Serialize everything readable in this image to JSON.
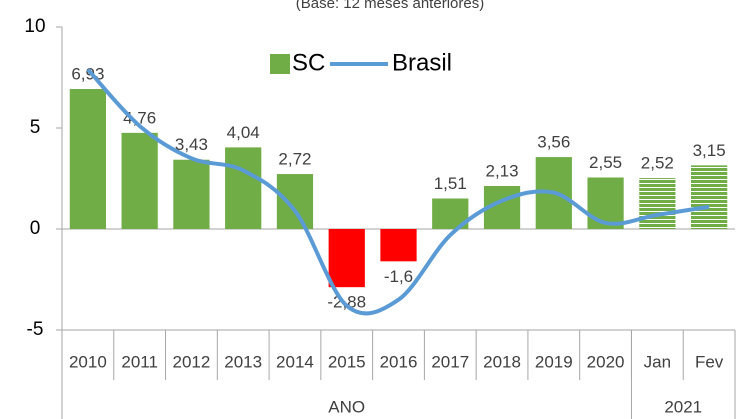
{
  "chart_data": {
    "type": "bar_line",
    "subtitle": "(Base: 12 meses anteriores)",
    "categories": [
      "2010",
      "2011",
      "2012",
      "2013",
      "2014",
      "2015",
      "2016",
      "2017",
      "2018",
      "2019",
      "2020",
      "Jan",
      "Fev"
    ],
    "category_groups": [
      {
        "label": "ANO",
        "span": 11
      },
      {
        "label": "2021",
        "span": 2
      }
    ],
    "series": [
      {
        "name": "SC",
        "type": "bar",
        "color": "#70ad47",
        "negative_color": "#ff0000",
        "patterns": [
          "solid",
          "solid",
          "solid",
          "solid",
          "solid",
          "solid",
          "solid",
          "solid",
          "solid",
          "solid",
          "solid",
          "hatched",
          "hatched"
        ],
        "values": [
          6.93,
          4.76,
          3.43,
          4.04,
          2.72,
          -2.88,
          -1.6,
          1.51,
          2.13,
          3.56,
          2.55,
          2.52,
          3.15
        ],
        "value_labels": [
          "6,93",
          "4,76",
          "3,43",
          "4,04",
          "2,72",
          "-2,88",
          "-1,6",
          "1,51",
          "2,13",
          "3,56",
          "2,55",
          "2,52",
          "3,15"
        ]
      },
      {
        "name": "Brasil",
        "type": "line",
        "color": "#5b9bd5",
        "values": [
          7.9,
          5.1,
          3.5,
          2.9,
          0.9,
          -3.8,
          -3.5,
          -0.3,
          1.4,
          1.8,
          0.3,
          0.7,
          1.1
        ]
      }
    ],
    "ylim": [
      -5,
      10
    ],
    "yticks": [
      -5,
      0,
      5,
      10
    ],
    "legend": "top"
  }
}
